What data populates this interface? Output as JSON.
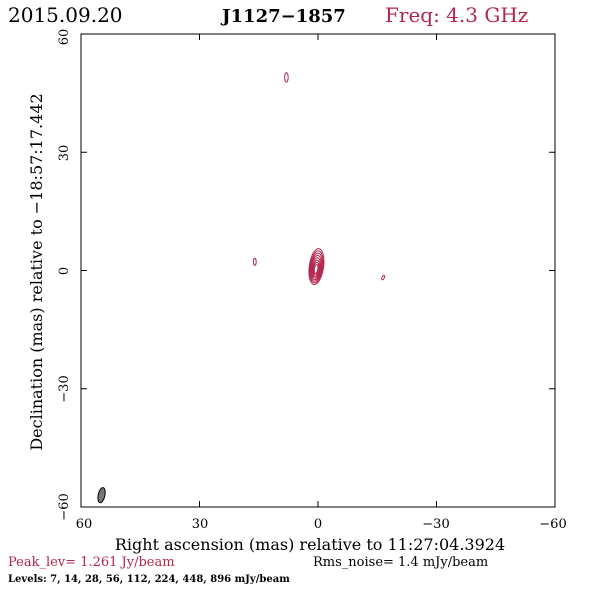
{
  "header": {
    "date": "2015.09.20",
    "source": "J1127−1857",
    "freq": "Freq: 4.3 GHz"
  },
  "axes": {
    "xlabel": "Right ascension (mas) relative to 11:27:04.3924",
    "ylabel": "Declination (mas) relative to −18:57:17.442",
    "xticks": [
      "60",
      "30",
      "0",
      "−30",
      "−60"
    ],
    "yticks": [
      "−60",
      "−30",
      "0",
      "30",
      "60"
    ],
    "xlim": [
      60,
      -60
    ],
    "ylim": [
      -60,
      60
    ]
  },
  "footer": {
    "peak": "Peak_lev=  1.261 Jy/beam",
    "rms": "Rms_noise=  1.4 mJy/beam",
    "levels": "Levels:   7,  14,  28,  56, 112, 224, 448, 896  mJy/beam"
  },
  "colors": {
    "contour": "#b5254d",
    "beam": "#777777",
    "text": "#000000"
  },
  "contour_components": [
    {
      "name": "core",
      "ra": 0.4,
      "dec": 1.0,
      "rx": 1.8,
      "ry": 4.6,
      "tilt": 8,
      "n_levels": 8
    },
    {
      "name": "blob-north",
      "ra": 8.0,
      "dec": 49.0,
      "rx": 0.45,
      "ry": 1.2,
      "tilt": 0,
      "n_levels": 1
    },
    {
      "name": "blob-west",
      "ra": 16.0,
      "dec": 2.2,
      "rx": 0.35,
      "ry": 0.9,
      "tilt": 0,
      "n_levels": 1
    },
    {
      "name": "blob-east",
      "ra": -16.5,
      "dec": -1.8,
      "rx": 0.3,
      "ry": 0.6,
      "tilt": 25,
      "n_levels": 1
    }
  ],
  "beam": {
    "ra": 54.8,
    "dec": -57.0,
    "rx": 0.85,
    "ry": 1.95,
    "tilt": 12
  }
}
